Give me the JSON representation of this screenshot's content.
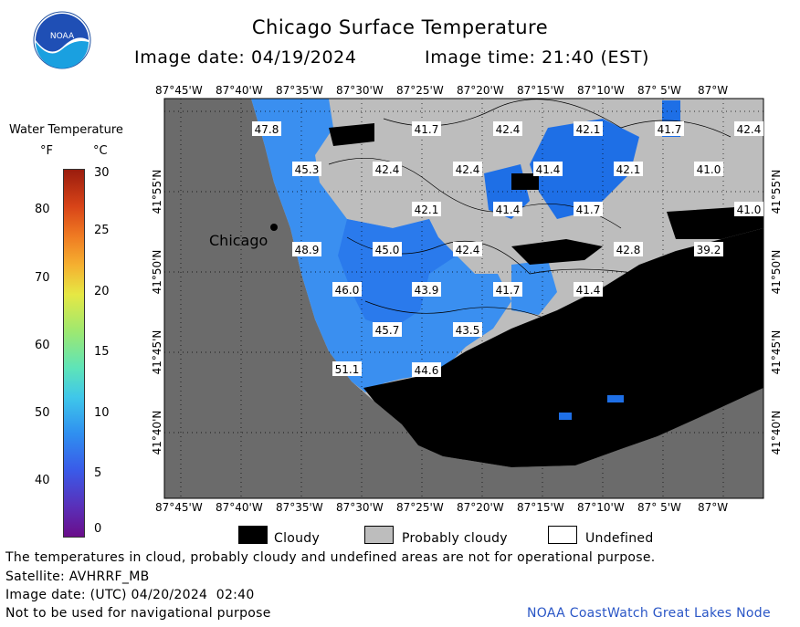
{
  "header": {
    "title": "Chicago Surface Temperature",
    "image_date": "Image date: 04/19/2024",
    "image_time": "Image time: 21:40 (EST)",
    "logo_text": "NOAA"
  },
  "colorbar": {
    "title": "Water Temperature",
    "unit_f": "°F",
    "unit_c": "°C",
    "f_ticks": [
      "80",
      "70",
      "60",
      "50",
      "40"
    ],
    "c_ticks": [
      "30",
      "25",
      "20",
      "15",
      "10",
      "5",
      "0"
    ]
  },
  "axes": {
    "lon_ticks": [
      "87°45'W",
      "87°40'W",
      "87°35'W",
      "87°30'W",
      "87°25'W",
      "87°20'W",
      "87°15'W",
      "87°10'W",
      "87° 5'W",
      "87°W"
    ],
    "lat_ticks": [
      "41°55'N",
      "41°50'N",
      "41°45'N",
      "41°40'N"
    ]
  },
  "map": {
    "city_label": "Chicago",
    "temperatures": [
      "47.8",
      "41.7",
      "42.4",
      "42.1",
      "41.7",
      "42.4",
      "45.3",
      "42.4",
      "42.4",
      "41.4",
      "42.1",
      "41.0",
      "42.1",
      "41.4",
      "41.7",
      "41.0",
      "48.9",
      "45.0",
      "42.4",
      "42.8",
      "39.2",
      "46.0",
      "43.9",
      "41.7",
      "41.4",
      "45.7",
      "43.5",
      "51.1",
      "44.6"
    ],
    "colors": {
      "land": "#6b6b6b",
      "cloudy": "#000000",
      "probably_cloudy": "#bdbdbd",
      "water_warm": "#3a8ff0",
      "water_cool": "#1e6fe6"
    }
  },
  "legend": {
    "cloudy": "Cloudy",
    "probably_cloudy": "Probably cloudy",
    "undefined": "Undefined"
  },
  "footer": {
    "disclaimer": "The temperatures in cloud, probably cloudy and undefined areas are not for operational purpose.",
    "satellite": "Satellite: AVHRRF_MB",
    "utc_date": "Image date: (UTC) 04/20/2024  02:40",
    "nav_warning": "Not to be used for navigational purpose",
    "credit": "NOAA CoastWatch Great Lakes Node"
  }
}
